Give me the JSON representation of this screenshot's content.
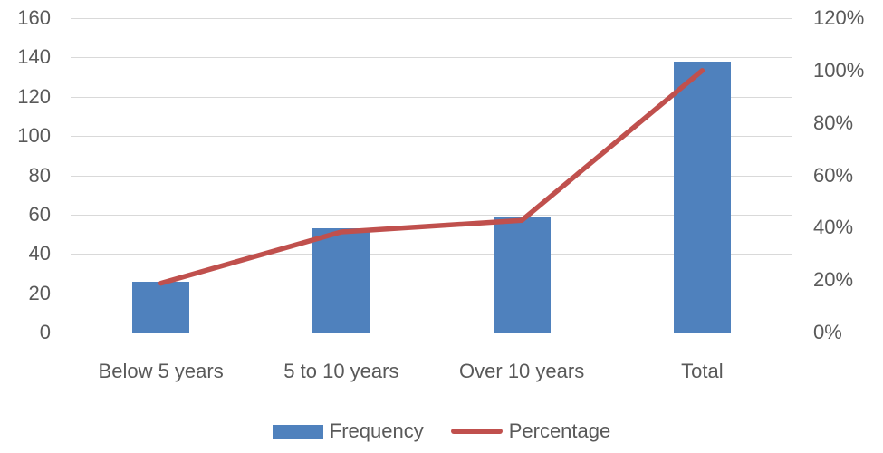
{
  "chart_data": {
    "type": "combo_bar_line",
    "categories": [
      "Below 5 years",
      "5 to 10 years",
      "Over 10 years",
      "Total"
    ],
    "series": [
      {
        "name": "Frequency",
        "chart": "bar",
        "axis": "left",
        "values": [
          26,
          53,
          59,
          138
        ],
        "color": "#4F81BD"
      },
      {
        "name": "Percentage",
        "chart": "line",
        "axis": "right",
        "values": [
          18.8,
          38.4,
          42.8,
          100
        ],
        "unit": "%",
        "color": "#C0504D"
      }
    ],
    "left_axis": {
      "min": 0,
      "max": 160,
      "step": 20,
      "tick_labels_top_to_bottom": [
        "160",
        "140",
        "120",
        "100",
        "80",
        "60",
        "40",
        "20",
        "0"
      ]
    },
    "right_axis": {
      "min": 0,
      "max": 120,
      "step": 20,
      "tick_labels_top_to_bottom": [
        "120%",
        "100%",
        "80%",
        "60%",
        "40%",
        "20%",
        "0%"
      ]
    },
    "grid": true,
    "title": "",
    "legend_position": "bottom"
  },
  "legend": {
    "items": [
      {
        "label": "Frequency",
        "swatch": "bar"
      },
      {
        "label": "Percentage",
        "swatch": "line"
      }
    ]
  },
  "colors": {
    "bar": "#4F81BD",
    "line": "#C0504D",
    "text": "#595959",
    "gridline": "#D9D9D9",
    "background": "#FFFFFF"
  }
}
